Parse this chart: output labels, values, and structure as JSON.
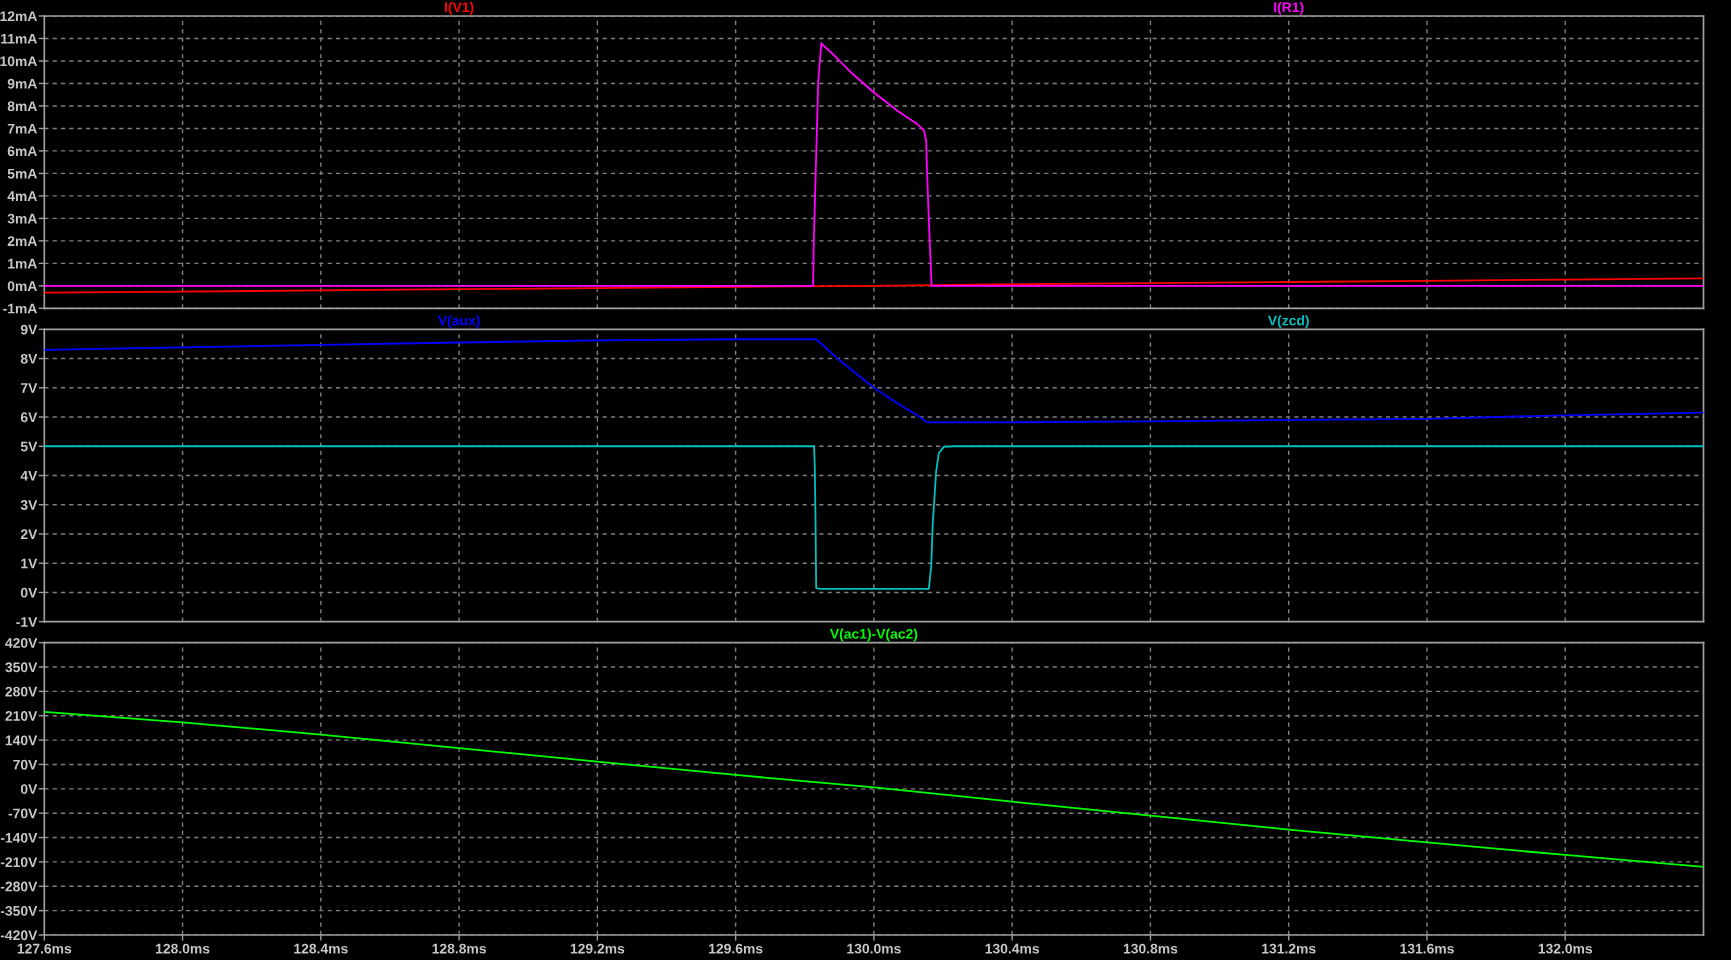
{
  "chart_data": [
    {
      "type": "line",
      "xlim": [
        127.6,
        132.4
      ],
      "xticks": [
        {
          "value": 127.6,
          "label": null
        },
        {
          "value": 128.0,
          "label": null
        },
        {
          "value": 128.4,
          "label": null
        },
        {
          "value": 128.8,
          "label": null
        },
        {
          "value": 129.2,
          "label": null
        },
        {
          "value": 129.6,
          "label": null
        },
        {
          "value": 130.0,
          "label": null
        },
        {
          "value": 130.4,
          "label": null
        },
        {
          "value": 130.8,
          "label": null
        },
        {
          "value": 131.2,
          "label": null
        },
        {
          "value": 131.6,
          "label": null
        },
        {
          "value": 132.0,
          "label": null
        }
      ],
      "ylim": [
        -1,
        12
      ],
      "yticks": [
        {
          "value": -1,
          "label": "-1mA"
        },
        {
          "value": 0,
          "label": "0mA"
        },
        {
          "value": 1,
          "label": "1mA"
        },
        {
          "value": 2,
          "label": "2mA"
        },
        {
          "value": 3,
          "label": "3mA"
        },
        {
          "value": 4,
          "label": "4mA"
        },
        {
          "value": 5,
          "label": "5mA"
        },
        {
          "value": 6,
          "label": "6mA"
        },
        {
          "value": 7,
          "label": "7mA"
        },
        {
          "value": 8,
          "label": "8mA"
        },
        {
          "value": 9,
          "label": "9mA"
        },
        {
          "value": 10,
          "label": "10mA"
        },
        {
          "value": 11,
          "label": "11mA"
        },
        {
          "value": 12,
          "label": "12mA"
        }
      ],
      "grid": true,
      "tick_labels": "y",
      "series": [
        {
          "name": "I(V1)",
          "color": "#ff0000",
          "x": [
            127.6,
            128.0,
            128.4,
            128.8,
            129.2,
            129.6,
            130.0,
            130.4,
            130.8,
            131.2,
            131.6,
            132.0,
            132.4
          ],
          "values": [
            -0.3,
            -0.26,
            -0.2,
            -0.15,
            -0.1,
            -0.04,
            0.0,
            0.07,
            0.12,
            0.17,
            0.22,
            0.28,
            0.33
          ]
        },
        {
          "name": "I(R1)",
          "color": "#ff00ff",
          "x": [
            127.6,
            129.824,
            129.826,
            129.833,
            129.839,
            129.848,
            129.853,
            129.875,
            129.933,
            130.0,
            130.067,
            130.125,
            130.145,
            130.151,
            130.154,
            130.159,
            130.163,
            130.167,
            132.4
          ],
          "values": [
            0,
            0,
            1.9,
            5.8,
            9.1,
            10.8,
            10.7,
            10.4,
            9.5,
            8.6,
            7.8,
            7.2,
            6.9,
            6.5,
            5.0,
            2.9,
            1.4,
            0,
            0
          ]
        }
      ]
    },
    {
      "type": "line",
      "xlim": [
        127.6,
        132.4
      ],
      "xticks": [
        {
          "value": 127.6,
          "label": null
        },
        {
          "value": 128.0,
          "label": null
        },
        {
          "value": 128.4,
          "label": null
        },
        {
          "value": 128.8,
          "label": null
        },
        {
          "value": 129.2,
          "label": null
        },
        {
          "value": 129.6,
          "label": null
        },
        {
          "value": 130.0,
          "label": null
        },
        {
          "value": 130.4,
          "label": null
        },
        {
          "value": 130.8,
          "label": null
        },
        {
          "value": 131.2,
          "label": null
        },
        {
          "value": 131.6,
          "label": null
        },
        {
          "value": 132.0,
          "label": null
        }
      ],
      "ylim": [
        -1,
        9
      ],
      "yticks": [
        {
          "value": -1,
          "label": "-1V"
        },
        {
          "value": 0,
          "label": "0V"
        },
        {
          "value": 1,
          "label": "1V"
        },
        {
          "value": 2,
          "label": "2V"
        },
        {
          "value": 3,
          "label": "3V"
        },
        {
          "value": 4,
          "label": "4V"
        },
        {
          "value": 5,
          "label": "5V"
        },
        {
          "value": 6,
          "label": "6V"
        },
        {
          "value": 7,
          "label": "7V"
        },
        {
          "value": 8,
          "label": "8V"
        },
        {
          "value": 9,
          "label": "9V"
        }
      ],
      "grid": true,
      "tick_labels": "y",
      "series": [
        {
          "name": "V(aux)",
          "color": "#0000ff",
          "x": [
            127.6,
            128.0,
            128.4,
            128.8,
            129.2,
            129.6,
            129.833,
            129.855,
            129.898,
            130.0,
            130.067,
            130.125,
            130.154,
            130.4,
            130.8,
            131.2,
            131.6,
            132.0,
            132.4
          ],
          "values": [
            8.3,
            8.38,
            8.47,
            8.55,
            8.62,
            8.66,
            8.66,
            8.43,
            7.97,
            7.0,
            6.48,
            6.06,
            5.82,
            5.82,
            5.85,
            5.9,
            5.94,
            6.06,
            6.15
          ]
        },
        {
          "name": "V(zcd)",
          "color": "#00c0c0",
          "x": [
            127.6,
            129.827,
            129.829,
            129.831,
            129.833,
            129.845,
            130.159,
            130.166,
            130.17,
            130.175,
            130.18,
            130.188,
            130.202,
            130.231,
            132.4
          ],
          "values": [
            5,
            5,
            4.25,
            2.59,
            0.15,
            0.12,
            0.12,
            0.93,
            2.3,
            3.22,
            4.13,
            4.77,
            4.98,
            5,
            5
          ]
        }
      ]
    },
    {
      "type": "line",
      "xlim": [
        127.6,
        132.4
      ],
      "xticks": [
        {
          "value": 127.6,
          "label": "127.6ms"
        },
        {
          "value": 128.0,
          "label": "128.0ms"
        },
        {
          "value": 128.4,
          "label": "128.4ms"
        },
        {
          "value": 128.8,
          "label": "128.8ms"
        },
        {
          "value": 129.2,
          "label": "129.2ms"
        },
        {
          "value": 129.6,
          "label": "129.6ms"
        },
        {
          "value": 130.0,
          "label": "130.0ms"
        },
        {
          "value": 130.4,
          "label": "130.4ms"
        },
        {
          "value": 130.8,
          "label": "130.8ms"
        },
        {
          "value": 131.2,
          "label": "131.2ms"
        },
        {
          "value": 131.6,
          "label": "131.6ms"
        },
        {
          "value": 132.0,
          "label": "132.0ms"
        }
      ],
      "ylim": [
        -420,
        420
      ],
      "yticks": [
        {
          "value": -420,
          "label": "-420V"
        },
        {
          "value": -350,
          "label": "-350V"
        },
        {
          "value": -280,
          "label": "-280V"
        },
        {
          "value": -210,
          "label": "-210V"
        },
        {
          "value": -140,
          "label": "-140V"
        },
        {
          "value": -70,
          "label": "-70V"
        },
        {
          "value": 0,
          "label": "0V"
        },
        {
          "value": 70,
          "label": "70V"
        },
        {
          "value": 140,
          "label": "140V"
        },
        {
          "value": 210,
          "label": "210V"
        },
        {
          "value": 280,
          "label": "280V"
        },
        {
          "value": 350,
          "label": "350V"
        },
        {
          "value": 420,
          "label": "420V"
        }
      ],
      "grid": true,
      "series": [
        {
          "name": "V(ac1)-V(ac2)",
          "color": "#00ff00",
          "x": [
            127.6,
            128.0,
            128.4,
            128.8,
            129.2,
            129.6,
            130.0,
            130.4,
            130.8,
            131.2,
            131.6,
            132.0,
            132.4
          ],
          "values": [
            221,
            191,
            156,
            117,
            78,
            40,
            4,
            -37,
            -77,
            -117,
            -154,
            -190,
            -224
          ]
        }
      ]
    }
  ]
}
